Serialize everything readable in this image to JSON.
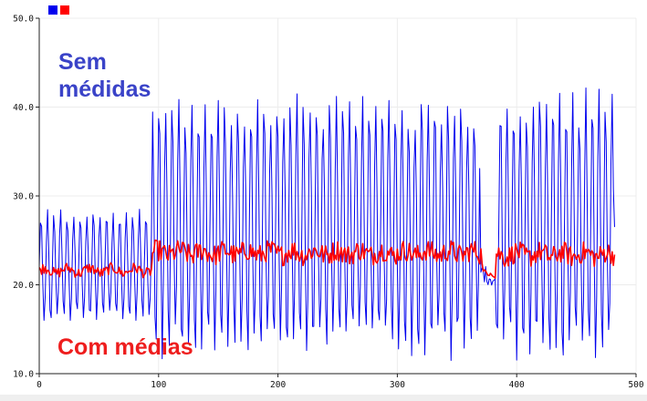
{
  "chart_data": {
    "type": "line",
    "title": "",
    "xlabel": "",
    "ylabel": "",
    "xlim": [
      0,
      500
    ],
    "ylim": [
      10.0,
      50.0
    ],
    "x_ticks": [
      0,
      100,
      200,
      300,
      400,
      500
    ],
    "y_ticks": [
      10.0,
      20.0,
      30.0,
      40.0,
      50.0
    ],
    "x_tick_labels": [
      "0",
      "100",
      "200",
      "300",
      "400",
      "500"
    ],
    "y_tick_labels": [
      "10.0",
      "20.0",
      "30.0",
      "40.0",
      "50.0"
    ],
    "grid": true,
    "legend": {
      "placement": "top-left",
      "show_text": false
    },
    "annotations": [
      {
        "id": "raw",
        "lines": [
          "Sem",
          "médidas"
        ],
        "color": "#3a43c8"
      },
      {
        "id": "avg",
        "lines": [
          "Com médias"
        ],
        "color": "#ee1d1d"
      }
    ],
    "series": [
      {
        "key": "raw",
        "color": "#0000ee",
        "x_range": [
          0,
          482
        ],
        "segments": [
          {
            "x": [
              0,
              95
            ],
            "center": 22.0,
            "low": 16.0,
            "high": 29.5,
            "period": 5.5
          },
          {
            "x": [
              95,
              378
            ],
            "center": 26.5,
            "low": 11.0,
            "high": 41.5,
            "period": 5.5
          },
          {
            "x": [
              378,
              482
            ],
            "center": 26.5,
            "low": 11.0,
            "high": 43.0,
            "period": 5.5
          }
        ],
        "dip": {
          "x": [
            370,
            382
          ],
          "values": [
            21.5,
            20.5
          ]
        }
      },
      {
        "key": "avg",
        "color": "#ff0000",
        "x_range": [
          0,
          482
        ],
        "segments": [
          {
            "x": [
              0,
              95
            ],
            "level": 21.6,
            "noise": 0.6
          },
          {
            "x": [
              95,
              378
            ],
            "level": 23.6,
            "noise": 1.2
          },
          {
            "x": [
              378,
              482
            ],
            "level": 23.4,
            "noise": 1.2
          }
        ],
        "dip": {
          "x": [
            372,
            382
          ],
          "values": [
            21.5,
            20.8
          ]
        }
      }
    ]
  }
}
